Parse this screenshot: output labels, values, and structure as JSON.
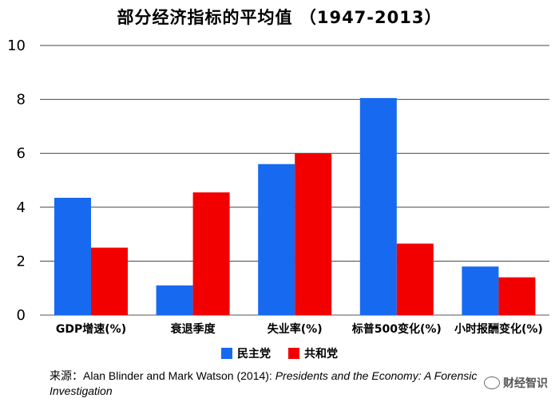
{
  "chart_data": {
    "type": "bar",
    "title": "部分经济指标的平均值 （1947-2013）",
    "categories": [
      "GDP增速(%)",
      "衰退季度",
      "失业率(%)",
      "标普500变化(%)",
      "小时报酬变化(%)"
    ],
    "series": [
      {
        "name": "民主党",
        "color": "#1769f0",
        "values": [
          4.35,
          1.1,
          5.6,
          8.05,
          1.8
        ]
      },
      {
        "name": "共和党",
        "color": "#f20000",
        "values": [
          2.5,
          4.55,
          6.0,
          2.65,
          1.4
        ]
      }
    ],
    "ylim": [
      0,
      10
    ],
    "yticks": [
      "0",
      "2",
      "4",
      "6",
      "8",
      "10"
    ],
    "grid": true,
    "legend_position": "bottom-center"
  },
  "source": {
    "prefix": "来源：Alan Blinder and Mark Watson (2014): ",
    "italic_title": "Presidents and the Economy: A Forensic Investigation"
  },
  "watermark": {
    "text": "财经智识",
    "icon": "wechat-icon"
  }
}
